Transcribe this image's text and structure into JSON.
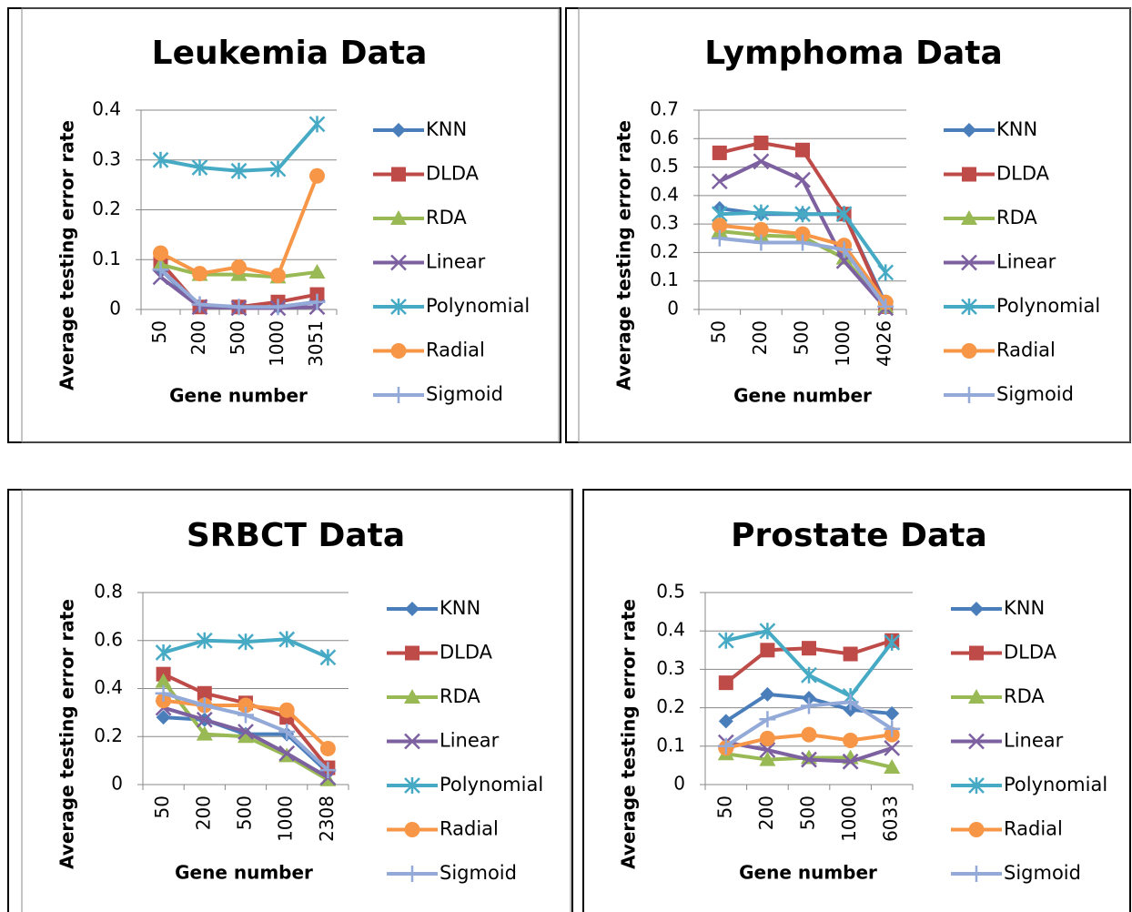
{
  "chart_data": [
    {
      "type": "line",
      "title": "Leukemia Data",
      "x_label": "Gene number",
      "y_label": "Average testing error rate",
      "categories": [
        "50",
        "200",
        "500",
        "1000",
        "3051"
      ],
      "ylim": [
        0,
        0.4
      ],
      "yticks": [
        0,
        0.1,
        0.2,
        0.3,
        0.4
      ],
      "grid": true,
      "legend": "right",
      "series": [
        {
          "name": "KNN",
          "color": "#4a7ebb",
          "marker": "diamond",
          "values": [
            0.08,
            0.005,
            0.005,
            0.005,
            0.015
          ]
        },
        {
          "name": "DLDA",
          "color": "#be4b48",
          "marker": "square",
          "values": [
            0.095,
            0.005,
            0.005,
            0.015,
            0.03
          ]
        },
        {
          "name": "RDA",
          "color": "#98b954",
          "marker": "triangle",
          "values": [
            0.09,
            0.07,
            0.07,
            0.065,
            0.075
          ]
        },
        {
          "name": "Linear",
          "color": "#7d60a0",
          "marker": "x",
          "values": [
            0.065,
            0.005,
            0.003,
            0.003,
            0.005
          ]
        },
        {
          "name": "Polynomial",
          "color": "#46aac5",
          "marker": "star",
          "values": [
            0.3,
            0.285,
            0.278,
            0.282,
            0.372
          ]
        },
        {
          "name": "Radial",
          "color": "#f79646",
          "marker": "circle",
          "values": [
            0.113,
            0.072,
            0.085,
            0.068,
            0.268
          ]
        },
        {
          "name": "Sigmoid",
          "color": "#93a9d8",
          "marker": "plus",
          "values": [
            0.08,
            0.01,
            0.005,
            0.005,
            0.015
          ]
        }
      ]
    },
    {
      "type": "line",
      "title": "Lymphoma Data",
      "x_label": "Gene number",
      "y_label": "Average testing error rate",
      "categories": [
        "50",
        "200",
        "500",
        "1000",
        "4026"
      ],
      "ylim": [
        0,
        0.7
      ],
      "yticks": [
        0,
        0.1,
        0.2,
        0.3,
        0.4,
        0.5,
        0.6,
        0.7
      ],
      "grid": true,
      "legend": "right",
      "series": [
        {
          "name": "KNN",
          "color": "#4a7ebb",
          "marker": "diamond",
          "values": [
            0.355,
            0.335,
            0.335,
            0.335,
            0.02
          ]
        },
        {
          "name": "DLDA",
          "color": "#be4b48",
          "marker": "square",
          "values": [
            0.55,
            0.585,
            0.56,
            0.335,
            0.01
          ]
        },
        {
          "name": "RDA",
          "color": "#98b954",
          "marker": "triangle",
          "values": [
            0.275,
            0.26,
            0.255,
            0.18,
            0.01
          ]
        },
        {
          "name": "Linear",
          "color": "#7d60a0",
          "marker": "x",
          "values": [
            0.45,
            0.52,
            0.455,
            0.17,
            0.005
          ]
        },
        {
          "name": "Polynomial",
          "color": "#46aac5",
          "marker": "star",
          "values": [
            0.335,
            0.34,
            0.335,
            0.335,
            0.13
          ]
        },
        {
          "name": "Radial",
          "color": "#f79646",
          "marker": "circle",
          "values": [
            0.295,
            0.28,
            0.265,
            0.225,
            0.025
          ]
        },
        {
          "name": "Sigmoid",
          "color": "#93a9d8",
          "marker": "plus",
          "values": [
            0.25,
            0.235,
            0.235,
            0.21,
            0.01
          ]
        }
      ]
    },
    {
      "type": "line",
      "title": "SRBCT Data",
      "x_label": "Gene number",
      "y_label": "Average testing error rate",
      "categories": [
        "50",
        "200",
        "500",
        "1000",
        "2308"
      ],
      "ylim": [
        0,
        0.8
      ],
      "yticks": [
        0,
        0.2,
        0.4,
        0.6,
        0.8
      ],
      "grid": true,
      "legend": "right",
      "series": [
        {
          "name": "KNN",
          "color": "#4a7ebb",
          "marker": "diamond",
          "values": [
            0.28,
            0.27,
            0.21,
            0.21,
            0.05
          ]
        },
        {
          "name": "DLDA",
          "color": "#be4b48",
          "marker": "square",
          "values": [
            0.46,
            0.38,
            0.34,
            0.28,
            0.07
          ]
        },
        {
          "name": "RDA",
          "color": "#98b954",
          "marker": "triangle",
          "values": [
            0.43,
            0.21,
            0.2,
            0.12,
            0.02
          ]
        },
        {
          "name": "Linear",
          "color": "#7d60a0",
          "marker": "x",
          "values": [
            0.32,
            0.27,
            0.22,
            0.13,
            0.03
          ]
        },
        {
          "name": "Polynomial",
          "color": "#46aac5",
          "marker": "star",
          "values": [
            0.55,
            0.6,
            0.595,
            0.605,
            0.53
          ]
        },
        {
          "name": "Radial",
          "color": "#f79646",
          "marker": "circle",
          "values": [
            0.35,
            0.33,
            0.33,
            0.31,
            0.15
          ]
        },
        {
          "name": "Sigmoid",
          "color": "#93a9d8",
          "marker": "plus",
          "values": [
            0.38,
            0.33,
            0.29,
            0.22,
            0.06
          ]
        }
      ]
    },
    {
      "type": "line",
      "title": "Prostate Data",
      "x_label": "Gene number",
      "y_label": "Average testing error rate",
      "categories": [
        "50",
        "200",
        "500",
        "1000",
        "6033"
      ],
      "ylim": [
        0,
        0.5
      ],
      "yticks": [
        0,
        0.1,
        0.2,
        0.3,
        0.4,
        0.5
      ],
      "grid": true,
      "legend": "right",
      "series": [
        {
          "name": "KNN",
          "color": "#4a7ebb",
          "marker": "diamond",
          "values": [
            0.165,
            0.235,
            0.225,
            0.195,
            0.185
          ]
        },
        {
          "name": "DLDA",
          "color": "#be4b48",
          "marker": "square",
          "values": [
            0.265,
            0.35,
            0.355,
            0.34,
            0.375
          ]
        },
        {
          "name": "RDA",
          "color": "#98b954",
          "marker": "triangle",
          "values": [
            0.08,
            0.065,
            0.07,
            0.07,
            0.045
          ]
        },
        {
          "name": "Linear",
          "color": "#7d60a0",
          "marker": "x",
          "values": [
            0.11,
            0.09,
            0.065,
            0.06,
            0.095
          ]
        },
        {
          "name": "Polynomial",
          "color": "#46aac5",
          "marker": "star",
          "values": [
            0.375,
            0.4,
            0.285,
            0.23,
            0.37
          ]
        },
        {
          "name": "Radial",
          "color": "#f79646",
          "marker": "circle",
          "values": [
            0.095,
            0.12,
            0.13,
            0.115,
            0.13
          ]
        },
        {
          "name": "Sigmoid",
          "color": "#93a9d8",
          "marker": "plus",
          "values": [
            0.1,
            0.17,
            0.205,
            0.215,
            0.145
          ]
        }
      ]
    }
  ]
}
